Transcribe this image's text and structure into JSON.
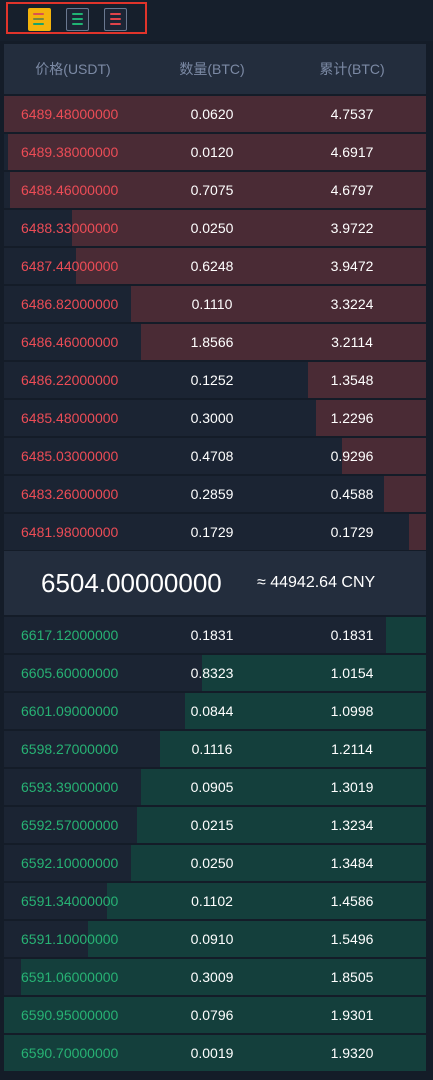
{
  "header": {
    "price": "价格(USDT)",
    "amount": "数量(BTC)",
    "total": "累计(BTC)"
  },
  "view_buttons": [
    {
      "name": "all-orders-view-icon"
    },
    {
      "name": "bids-only-view-icon"
    },
    {
      "name": "asks-only-view-icon"
    }
  ],
  "colors": {
    "ask": "#ec4c56",
    "bid": "#27b274",
    "ask_depth": "#4a2b35",
    "bid_depth": "#143f3c"
  },
  "asks": [
    {
      "price": "6489.48000000",
      "amount": "0.0620",
      "total": "4.7537",
      "depth": 1.0
    },
    {
      "price": "6489.38000000",
      "amount": "0.0120",
      "total": "4.6917",
      "depth": 0.99
    },
    {
      "price": "6488.46000000",
      "amount": "0.7075",
      "total": "4.6797",
      "depth": 0.985
    },
    {
      "price": "6488.33000000",
      "amount": "0.0250",
      "total": "3.9722",
      "depth": 0.84
    },
    {
      "price": "6487.44000000",
      "amount": "0.6248",
      "total": "3.9472",
      "depth": 0.83
    },
    {
      "price": "6486.82000000",
      "amount": "0.1110",
      "total": "3.3224",
      "depth": 0.7
    },
    {
      "price": "6486.46000000",
      "amount": "1.8566",
      "total": "3.2114",
      "depth": 0.675
    },
    {
      "price": "6486.22000000",
      "amount": "0.1252",
      "total": "1.3548",
      "depth": 0.28
    },
    {
      "price": "6485.48000000",
      "amount": "0.3000",
      "total": "1.2296",
      "depth": 0.26
    },
    {
      "price": "6485.03000000",
      "amount": "0.4708",
      "total": "0.9296",
      "depth": 0.2
    },
    {
      "price": "6483.26000000",
      "amount": "0.2859",
      "total": "0.4588",
      "depth": 0.1
    },
    {
      "price": "6481.98000000",
      "amount": "0.1729",
      "total": "0.1729",
      "depth": 0.04
    }
  ],
  "last_price": "6504.00000000",
  "cny_price": "≈ 44942.64 CNY",
  "bids": [
    {
      "price": "6617.12000000",
      "amount": "0.1831",
      "total": "0.1831",
      "depth": 0.095
    },
    {
      "price": "6605.60000000",
      "amount": "0.8323",
      "total": "1.0154",
      "depth": 0.53
    },
    {
      "price": "6601.09000000",
      "amount": "0.0844",
      "total": "1.0998",
      "depth": 0.57
    },
    {
      "price": "6598.27000000",
      "amount": "0.1116",
      "total": "1.2114",
      "depth": 0.63
    },
    {
      "price": "6593.39000000",
      "amount": "0.0905",
      "total": "1.3019",
      "depth": 0.675
    },
    {
      "price": "6592.57000000",
      "amount": "0.0215",
      "total": "1.3234",
      "depth": 0.685
    },
    {
      "price": "6592.10000000",
      "amount": "0.0250",
      "total": "1.3484",
      "depth": 0.7
    },
    {
      "price": "6591.34000000",
      "amount": "0.1102",
      "total": "1.4586",
      "depth": 0.755
    },
    {
      "price": "6591.10000000",
      "amount": "0.0910",
      "total": "1.5496",
      "depth": 0.8
    },
    {
      "price": "6591.06000000",
      "amount": "0.3009",
      "total": "1.8505",
      "depth": 0.96
    },
    {
      "price": "6590.95000000",
      "amount": "0.0796",
      "total": "1.9301",
      "depth": 1.0
    },
    {
      "price": "6590.70000000",
      "amount": "0.0019",
      "total": "1.9320",
      "depth": 1.0
    }
  ]
}
